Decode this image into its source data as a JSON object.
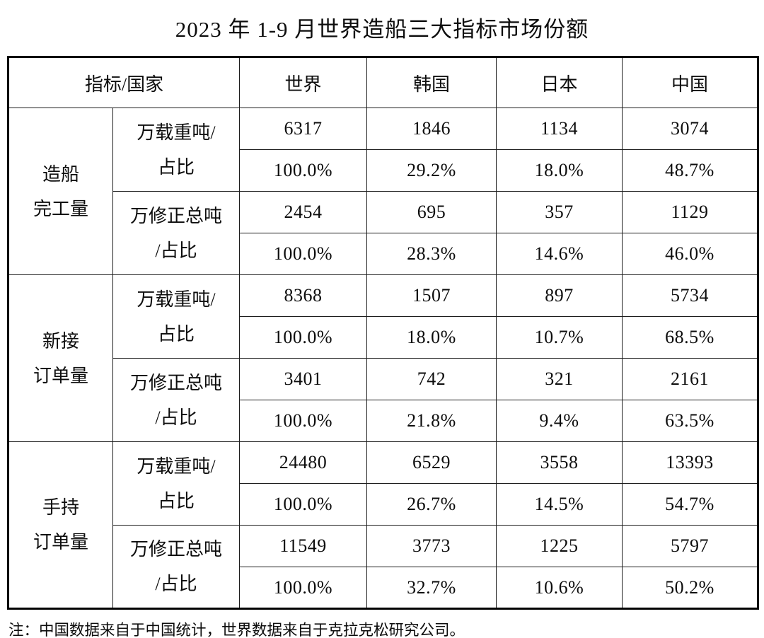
{
  "title": "2023 年 1-9 月世界造船三大指标市场份额",
  "note": "注：中国数据来自于中国统计，世界数据来自于克拉克松研究公司。",
  "table": {
    "header": {
      "indicator_country": "指标/国家",
      "columns": [
        "世界",
        "韩国",
        "日本",
        "中国"
      ]
    },
    "groups": [
      {
        "label_lines": [
          "造船",
          "完工量"
        ],
        "metrics": [
          {
            "unit_lines": [
              "万载重吨/",
              "占比"
            ],
            "values": [
              "6317",
              "1846",
              "1134",
              "3074"
            ],
            "shares": [
              "100.0%",
              "29.2%",
              "18.0%",
              "48.7%"
            ]
          },
          {
            "unit_lines": [
              "万修正总吨",
              "/占比"
            ],
            "values": [
              "2454",
              "695",
              "357",
              "1129"
            ],
            "shares": [
              "100.0%",
              "28.3%",
              "14.6%",
              "46.0%"
            ]
          }
        ]
      },
      {
        "label_lines": [
          "新接",
          "订单量"
        ],
        "metrics": [
          {
            "unit_lines": [
              "万载重吨/",
              "占比"
            ],
            "values": [
              "8368",
              "1507",
              "897",
              "5734"
            ],
            "shares": [
              "100.0%",
              "18.0%",
              "10.7%",
              "68.5%"
            ]
          },
          {
            "unit_lines": [
              "万修正总吨",
              "/占比"
            ],
            "values": [
              "3401",
              "742",
              "321",
              "2161"
            ],
            "shares": [
              "100.0%",
              "21.8%",
              "9.4%",
              "63.5%"
            ]
          }
        ]
      },
      {
        "label_lines": [
          "手持",
          "订单量"
        ],
        "metrics": [
          {
            "unit_lines": [
              "万载重吨/",
              "占比"
            ],
            "values": [
              "24480",
              "6529",
              "3558",
              "13393"
            ],
            "shares": [
              "100.0%",
              "26.7%",
              "14.5%",
              "54.7%"
            ]
          },
          {
            "unit_lines": [
              "万修正总吨",
              "/占比"
            ],
            "values": [
              "11549",
              "3773",
              "1225",
              "5797"
            ],
            "shares": [
              "100.0%",
              "32.7%",
              "10.6%",
              "50.2%"
            ]
          }
        ]
      }
    ]
  }
}
